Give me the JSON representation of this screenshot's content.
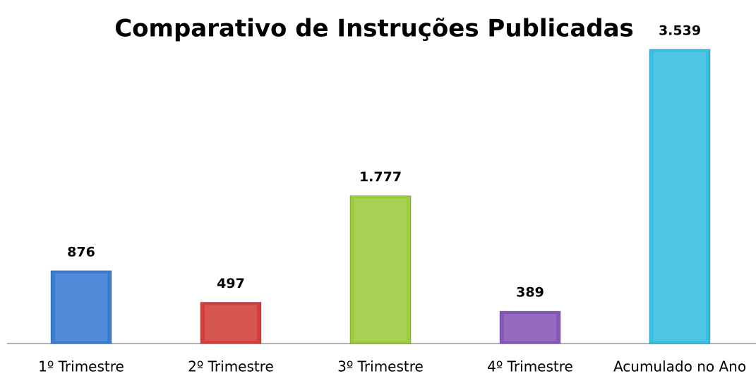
{
  "chart_data": {
    "type": "bar",
    "title": "Comparativo de Instruções Publicadas",
    "categories": [
      "1º Trimestre",
      "2º Trimestre",
      "3º Trimestre",
      "4º Trimestre",
      "Acumulado no Ano"
    ],
    "values": [
      876,
      497,
      1777,
      389,
      3539
    ],
    "value_labels": [
      "876",
      "497",
      "1.777",
      "389",
      "3.539"
    ],
    "colors": [
      "#3b7dd3",
      "#d23f3b",
      "#9ccb3c",
      "#8757b8",
      "#38c0e2"
    ]
  }
}
